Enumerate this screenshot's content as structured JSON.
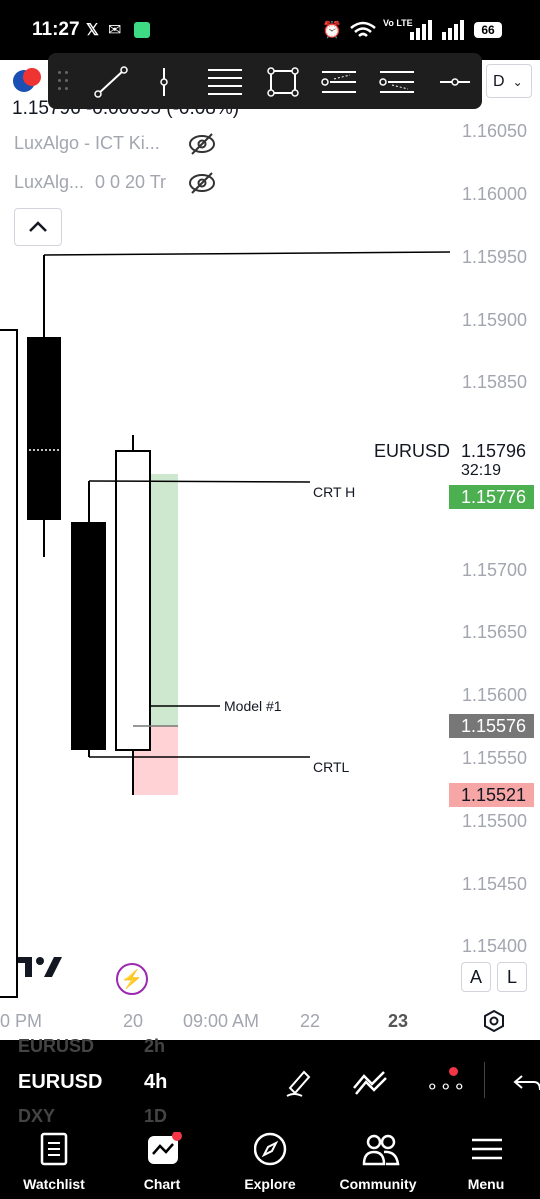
{
  "status_bar": {
    "time": "11:27",
    "battery": "66",
    "network": "Vo LTE"
  },
  "legend": {
    "symbol_row": "1.15796 -0.00095 (-0.08%)",
    "indicator_1": "LuxAlgo - ICT Ki...",
    "indicator_2": "LuxAlg...",
    "indicator_2_params": "0 0 20 Tr",
    "currency_badge": "D"
  },
  "price_axis": {
    "ticks": [
      "1.16050",
      "1.16000",
      "1.15950",
      "1.15900",
      "1.15850",
      "1.15700",
      "1.15650",
      "1.15600",
      "1.15550",
      "1.15500",
      "1.15450",
      "1.15400"
    ],
    "symbol_label": "EURUSD",
    "last_price": "1.15796",
    "countdown": "32:19",
    "green_price": "1.15776",
    "gray_price": "1.15576",
    "red_price": "1.15521"
  },
  "annotations": {
    "crt_high": "CRT H",
    "model": "Model #1",
    "crt_low": "CRTL"
  },
  "time_axis": {
    "labels": [
      "0 PM",
      "20",
      "09:00 AM",
      "22",
      "23"
    ]
  },
  "chart_buttons": {
    "auto": "A",
    "log": "L"
  },
  "lower_panel": {
    "ghost_top_symbol": "EURUSD",
    "ghost_top_interval": "2h",
    "symbol": "EURUSD",
    "interval": "4h",
    "ghost_bottom_symbol": "DXY",
    "ghost_bottom_interval": "1D"
  },
  "bottom_nav": [
    {
      "label": "Watchlist",
      "icon": "watchlist-icon"
    },
    {
      "label": "Chart",
      "icon": "chart-icon"
    },
    {
      "label": "Explore",
      "icon": "compass-icon"
    },
    {
      "label": "Community",
      "icon": "community-icon"
    },
    {
      "label": "Menu",
      "icon": "menu-icon"
    }
  ],
  "colors": {
    "green": "#4caf50",
    "red": "#f7a6a6",
    "gray": "#777777",
    "zone_green": "#c8e6c9",
    "zone_red": "#ffcdd2"
  }
}
